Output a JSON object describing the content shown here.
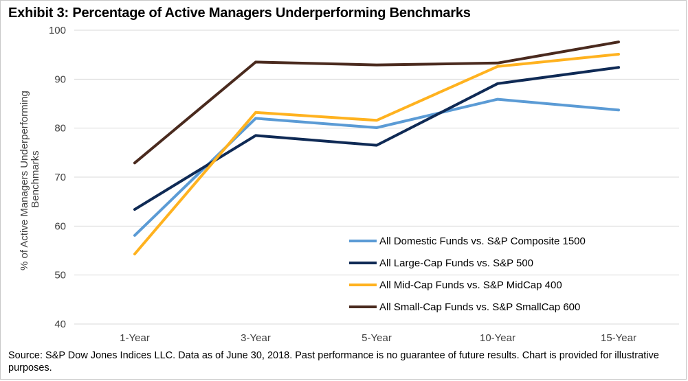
{
  "title": "Exhibit 3: Percentage of Active Managers Underperforming Benchmarks",
  "source_note": "Source: S&P Dow Jones Indices LLC. Data as of June 30, 2018. Past performance is no guarantee of future results. Chart is provided for illustrative purposes.",
  "chart_data": {
    "type": "line",
    "categories": [
      "1-Year",
      "3-Year",
      "5-Year",
      "10-Year",
      "15-Year"
    ],
    "ylabel_lines": [
      "% of Active Managers Underperforming",
      "Benchmarks"
    ],
    "ylim": [
      40,
      100
    ],
    "yticks": [
      40,
      50,
      60,
      70,
      80,
      90,
      100
    ],
    "grid": true,
    "legend_position": "bottom-right",
    "series": [
      {
        "name": "All Domestic Funds vs. S&P Composite 1500",
        "color": "#5b9bd5",
        "values": [
          58.1,
          82.0,
          80.1,
          85.9,
          83.7
        ]
      },
      {
        "name": "All Large-Cap Funds vs. S&P 500",
        "color": "#0f2a55",
        "values": [
          63.4,
          78.5,
          76.5,
          89.1,
          92.4
        ]
      },
      {
        "name": "All Mid-Cap Funds vs. S&P MidCap 400",
        "color": "#ffb21f",
        "values": [
          54.3,
          83.2,
          81.6,
          92.6,
          95.1
        ]
      },
      {
        "name": "All Small-Cap Funds vs. S&P SmallCap 600",
        "color": "#4a2a1e",
        "values": [
          72.9,
          93.5,
          92.9,
          93.3,
          97.6
        ]
      }
    ]
  }
}
